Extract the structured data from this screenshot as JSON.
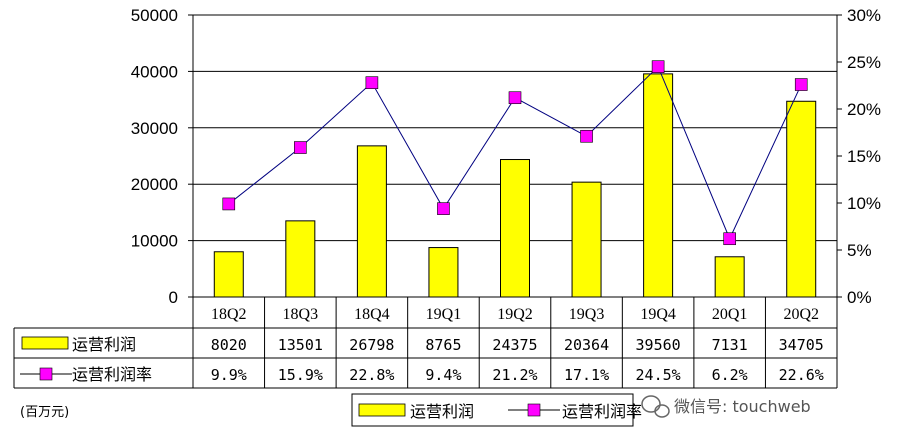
{
  "chart_data": {
    "type": "bar",
    "categories": [
      "18Q2",
      "18Q3",
      "18Q4",
      "19Q1",
      "19Q2",
      "19Q3",
      "19Q4",
      "20Q1",
      "20Q2"
    ],
    "series": [
      {
        "name": "运营利润",
        "kind": "bar",
        "axis": "left",
        "color": "#FFFF00",
        "values": [
          8020,
          13501,
          26798,
          8765,
          24375,
          20364,
          39560,
          7131,
          34705
        ],
        "table_labels": [
          "8020",
          "13501",
          "26798",
          "8765",
          "24375",
          "20364",
          "39560",
          "7131",
          "34705"
        ]
      },
      {
        "name": "运营利润率",
        "kind": "line",
        "axis": "right",
        "color": "#FF00FF",
        "line_color": "#000080",
        "marker": "square",
        "values": [
          9.9,
          15.9,
          22.8,
          9.4,
          21.2,
          17.1,
          24.5,
          6.2,
          22.6
        ],
        "table_labels": [
          "9.9%",
          "15.9%",
          "22.8%",
          "9.4%",
          "21.2%",
          "17.1%",
          "24.5%",
          "6.2%",
          "22.6%"
        ]
      }
    ],
    "y_left": {
      "ylim": [
        0,
        50000
      ],
      "ticks": [
        "0",
        "10000",
        "20000",
        "30000",
        "40000",
        "50000"
      ]
    },
    "y_right": {
      "ylim": [
        0,
        30
      ],
      "ticks": [
        "0%",
        "5%",
        "10%",
        "15%",
        "20%",
        "25%",
        "30%"
      ]
    },
    "grid": true,
    "legend_position": "bottom",
    "data_table": true
  },
  "unit_note": "(百万元)",
  "watermark": "微信号: touchweb"
}
